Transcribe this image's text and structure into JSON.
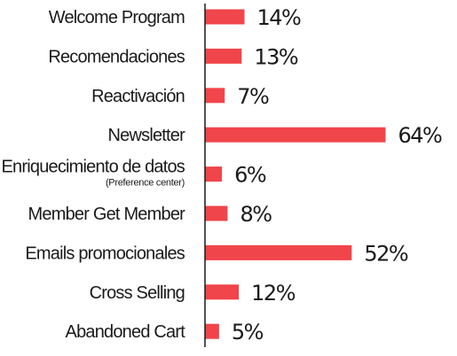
{
  "chart_data": {
    "type": "bar",
    "orientation": "horizontal",
    "categories": [
      "Welcome Program",
      "Recomendaciones",
      "Reactivación",
      "Newsletter",
      "Enriquecimiento de datos",
      "Member Get Member",
      "Emails promocionales",
      "Cross Selling",
      "Abandoned Cart"
    ],
    "category_sublabels": [
      "",
      "",
      "",
      "",
      "(Preference center)",
      "",
      "",
      "",
      ""
    ],
    "values": [
      14,
      13,
      7,
      64,
      6,
      8,
      52,
      12,
      5
    ],
    "value_labels": [
      "14%",
      "13%",
      "7%",
      "64%",
      "6%",
      "8%",
      "52%",
      "12%",
      "5%"
    ],
    "bar_color": "#f0454a",
    "axis_color": "#1a1a1a",
    "grid": false,
    "legend": "none"
  }
}
